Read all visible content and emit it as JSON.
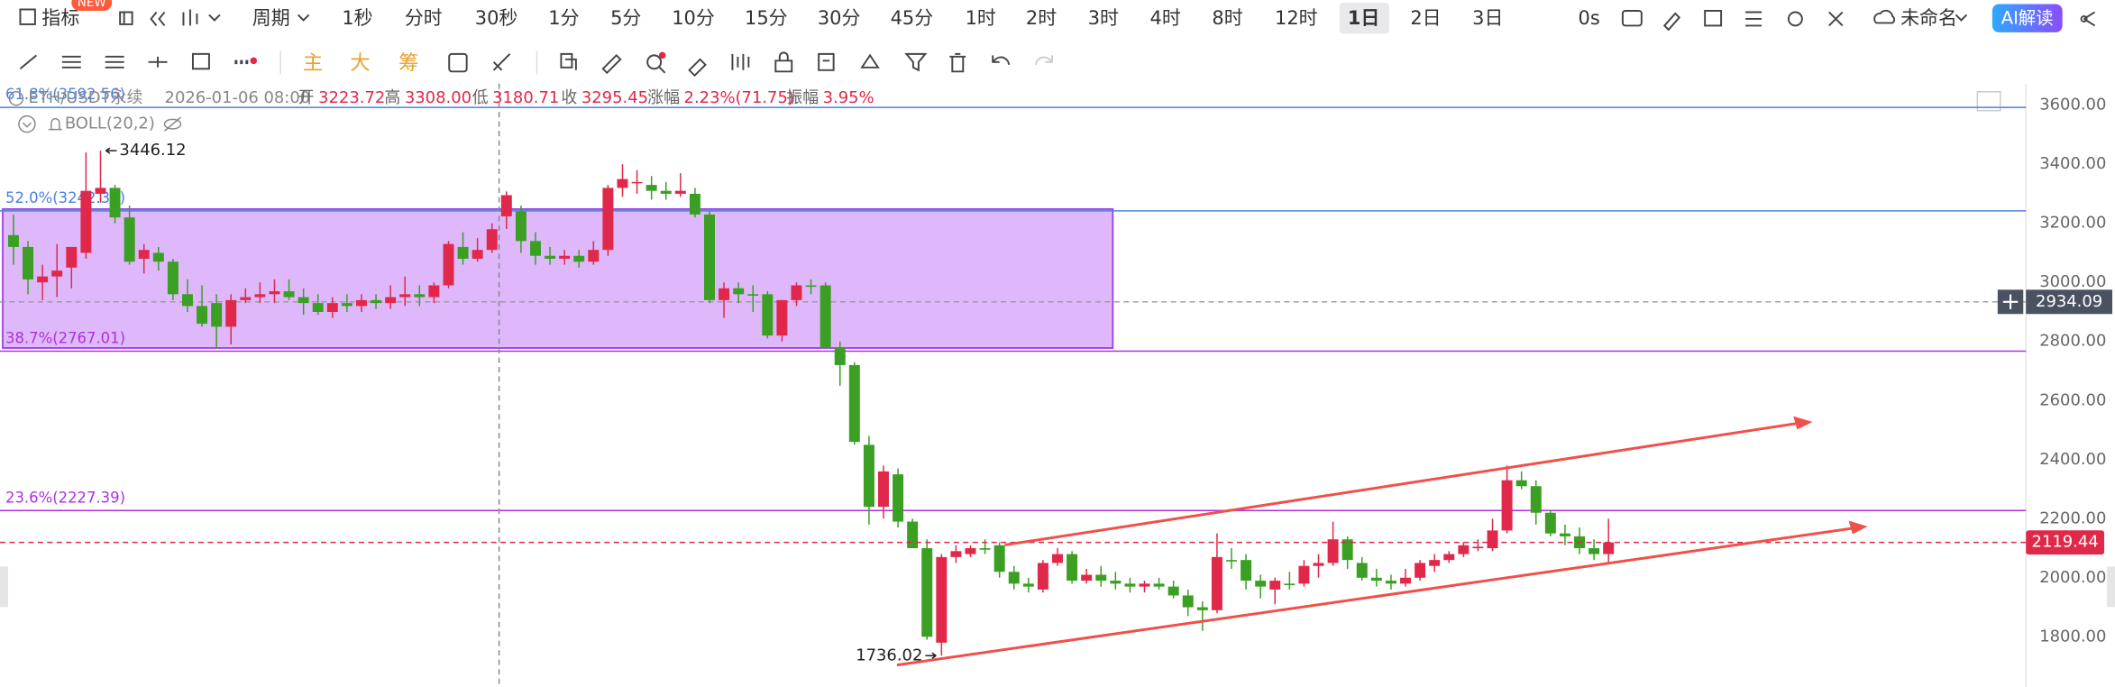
{
  "toolbar": {
    "indicator": "指标",
    "badge": "NEW",
    "period": "周期",
    "intervals": [
      "1秒",
      "分时",
      "30秒",
      "1分",
      "5分",
      "10分",
      "15分",
      "30分",
      "45分",
      "1时",
      "2时",
      "3时",
      "4时",
      "8时",
      "12时",
      "1日",
      "2日",
      "3日"
    ],
    "selected_interval": "1日",
    "countdown": "0s",
    "layout_name": "未命名",
    "ai_button": "AI解读"
  },
  "drawing_toolbar": {
    "main": "主",
    "big": "大",
    "chips": "筹"
  },
  "info": {
    "symbol": "ETH/USDT永续",
    "time": "2026-01-06 08:00",
    "open_label": "开",
    "open": "3223.72",
    "high_label": "高",
    "high": "3308.00",
    "low_label": "低",
    "low": "3180.71",
    "close_label": "收",
    "close": "3295.45",
    "change_label": "涨幅",
    "change": "2.23%(71.75)",
    "amplitude_label": "振幅",
    "amplitude": "3.95%"
  },
  "indicator": "BOLL(20,2)",
  "chart_data": {
    "type": "candlestick",
    "up_color": "#e0294a",
    "down_color": "#3a9f22",
    "ohlc": [
      [
        3160,
        3230,
        3060,
        3120
      ],
      [
        3120,
        3140,
        2960,
        3010
      ],
      [
        3000,
        3060,
        2940,
        3020
      ],
      [
        3020,
        3130,
        2950,
        3040
      ],
      [
        3050,
        3110,
        2980,
        3120
      ],
      [
        3100,
        3440,
        3080,
        3310
      ],
      [
        3300,
        3446.12,
        3270,
        3320
      ],
      [
        3320,
        3330,
        3200,
        3220
      ],
      [
        3220,
        3260,
        3060,
        3070
      ],
      [
        3080,
        3130,
        3030,
        3110
      ],
      [
        3100,
        3120,
        3040,
        3070
      ],
      [
        3070,
        3080,
        2940,
        2960
      ],
      [
        2960,
        3010,
        2900,
        2920
      ],
      [
        2920,
        2990,
        2850,
        2860
      ],
      [
        2930,
        2960,
        2775,
        2850
      ],
      [
        2850,
        2960,
        2790,
        2940
      ],
      [
        2940,
        2980,
        2930,
        2950
      ],
      [
        2950,
        3000,
        2930,
        2960
      ],
      [
        2960,
        3010,
        2930,
        2970
      ],
      [
        2970,
        3010,
        2940,
        2950
      ],
      [
        2950,
        2980,
        2890,
        2930
      ],
      [
        2930,
        2960,
        2890,
        2900
      ],
      [
        2900,
        2950,
        2880,
        2930
      ],
      [
        2930,
        2960,
        2900,
        2920
      ],
      [
        2920,
        2960,
        2900,
        2940
      ],
      [
        2940,
        2960,
        2910,
        2930
      ],
      [
        2930,
        2990,
        2910,
        2950
      ],
      [
        2950,
        3020,
        2920,
        2960
      ],
      [
        2960,
        2990,
        2920,
        2950
      ],
      [
        2950,
        3000,
        2930,
        2990
      ],
      [
        2990,
        3140,
        2980,
        3130
      ],
      [
        3120,
        3170,
        3060,
        3080
      ],
      [
        3080,
        3150,
        3070,
        3110
      ],
      [
        3110,
        3200,
        3100,
        3180
      ],
      [
        3223.72,
        3308,
        3180.71,
        3295.45
      ],
      [
        3240,
        3260,
        3100,
        3140
      ],
      [
        3140,
        3170,
        3060,
        3090
      ],
      [
        3090,
        3120,
        3060,
        3080
      ],
      [
        3080,
        3110,
        3060,
        3090
      ],
      [
        3090,
        3110,
        3050,
        3070
      ],
      [
        3070,
        3140,
        3060,
        3110
      ],
      [
        3110,
        3330,
        3090,
        3320
      ],
      [
        3320,
        3400,
        3290,
        3350
      ],
      [
        3340,
        3380,
        3300,
        3340
      ],
      [
        3330,
        3360,
        3280,
        3310
      ],
      [
        3310,
        3340,
        3280,
        3300
      ],
      [
        3300,
        3370,
        3290,
        3310
      ],
      [
        3300,
        3320,
        3220,
        3230
      ],
      [
        3230,
        3240,
        2930,
        2940
      ],
      [
        2940,
        3000,
        2880,
        2980
      ],
      [
        2980,
        3000,
        2930,
        2960
      ],
      [
        2960,
        2990,
        2900,
        2955
      ],
      [
        2960,
        2970,
        2810,
        2820
      ],
      [
        2820,
        2940,
        2800,
        2940
      ],
      [
        2940,
        3000,
        2920,
        2990
      ],
      [
        2990,
        3010,
        2960,
        2985
      ],
      [
        2990,
        3000,
        2780,
        2780
      ],
      [
        2780,
        2800,
        2650,
        2720
      ],
      [
        2720,
        2730,
        2450,
        2460
      ],
      [
        2450,
        2480,
        2180,
        2240
      ],
      [
        2240,
        2380,
        2200,
        2360
      ],
      [
        2350,
        2370,
        2170,
        2190
      ],
      [
        2190,
        2200,
        2100,
        2100
      ],
      [
        2100,
        2130,
        1790,
        1800
      ],
      [
        1780,
        2080,
        1736.02,
        2070
      ],
      [
        2070,
        2110,
        2050,
        2090
      ],
      [
        2080,
        2110,
        2070,
        2100
      ],
      [
        2100,
        2130,
        2080,
        2095
      ],
      [
        2110,
        2120,
        2000,
        2020
      ],
      [
        2020,
        2040,
        1960,
        1980
      ],
      [
        1980,
        2000,
        1950,
        1970
      ],
      [
        1960,
        2060,
        1950,
        2050
      ],
      [
        2050,
        2100,
        2040,
        2080
      ],
      [
        2080,
        2090,
        1980,
        1990
      ],
      [
        1990,
        2030,
        1980,
        2010
      ],
      [
        2010,
        2040,
        1970,
        1990
      ],
      [
        1990,
        2020,
        1960,
        1980
      ],
      [
        1980,
        2000,
        1950,
        1970
      ],
      [
        1970,
        1990,
        1950,
        1980
      ],
      [
        1980,
        2000,
        1960,
        1970
      ],
      [
        1970,
        1990,
        1930,
        1940
      ],
      [
        1940,
        1960,
        1870,
        1900
      ],
      [
        1900,
        1920,
        1820,
        1890
      ],
      [
        1890,
        2150,
        1880,
        2070
      ],
      [
        2060,
        2100,
        2030,
        2055
      ],
      [
        2060,
        2080,
        1960,
        1990
      ],
      [
        1990,
        2010,
        1930,
        1970
      ],
      [
        1960,
        2000,
        1910,
        1990
      ],
      [
        1980,
        2020,
        1960,
        1975
      ],
      [
        1980,
        2060,
        1970,
        2040
      ],
      [
        2040,
        2080,
        2000,
        2050
      ],
      [
        2050,
        2190,
        2040,
        2130
      ],
      [
        2130,
        2140,
        2030,
        2060
      ],
      [
        2050,
        2070,
        1990,
        2000
      ],
      [
        2000,
        2030,
        1970,
        1990
      ],
      [
        1990,
        2010,
        1960,
        1980
      ],
      [
        1980,
        2030,
        1970,
        2000
      ],
      [
        2000,
        2060,
        1990,
        2050
      ],
      [
        2040,
        2080,
        2020,
        2060
      ],
      [
        2060,
        2090,
        2050,
        2080
      ],
      [
        2080,
        2120,
        2070,
        2110
      ],
      [
        2100,
        2130,
        2090,
        2105
      ],
      [
        2100,
        2200,
        2090,
        2160
      ],
      [
        2160,
        2380,
        2150,
        2330
      ],
      [
        2330,
        2360,
        2300,
        2310
      ],
      [
        2310,
        2330,
        2180,
        2220
      ],
      [
        2220,
        2230,
        2140,
        2150
      ],
      [
        2150,
        2180,
        2110,
        2140
      ],
      [
        2140,
        2170,
        2080,
        2100
      ],
      [
        2100,
        2130,
        2060,
        2080
      ],
      [
        2080,
        2200,
        2050,
        2119.44
      ]
    ],
    "ylim": [
      1630,
      3673
    ],
    "yticks": [
      {
        "value": 1800,
        "label": "1800.00"
      },
      {
        "value": 2000,
        "label": "2000.00"
      },
      {
        "value": 2200,
        "label": "2200.00"
      },
      {
        "value": 2400,
        "label": "2400.00"
      },
      {
        "value": 2600,
        "label": "2600.00"
      },
      {
        "value": 2800,
        "label": "2800.00"
      },
      {
        "value": 3000,
        "label": "3000.00"
      },
      {
        "value": 3200,
        "label": "3200.00"
      },
      {
        "value": 3400,
        "label": "3400.00"
      },
      {
        "value": 3600,
        "label": "3600.00"
      }
    ],
    "grid": false,
    "fib_levels": [
      {
        "value": 3592.56,
        "label": "61.8%(3592.56)",
        "color": "#4d7fe0"
      },
      {
        "value": 3242.31,
        "label": "52.0%(3242.31)",
        "color": "#4d7fe0"
      },
      {
        "value": 2767.01,
        "label": "38.7%(2767.01)",
        "color": "#b02ee0"
      },
      {
        "value": 2227.39,
        "label": "23.6%(2227.39)",
        "color": "#b02ee0"
      }
    ],
    "crosshair_price": 2934.09,
    "last_price": 2119.44
  }
}
